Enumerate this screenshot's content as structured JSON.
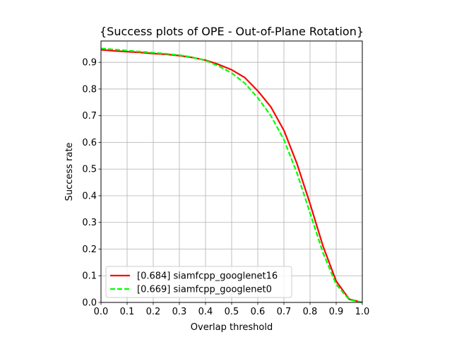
{
  "chart_data": {
    "type": "line",
    "title": "{Success plots of OPE - Out-of-Plane Rotation}",
    "xlabel": "Overlap threshold",
    "ylabel": "Success rate",
    "xlim": [
      0.0,
      1.0
    ],
    "ylim": [
      0.0,
      0.98
    ],
    "xticks": [
      "0.0",
      "0.1",
      "0.2",
      "0.3",
      "0.4",
      "0.5",
      "0.6",
      "0.7",
      "0.8",
      "0.9",
      "1.0"
    ],
    "yticks": [
      "0.0",
      "0.1",
      "0.2",
      "0.3",
      "0.4",
      "0.5",
      "0.6",
      "0.7",
      "0.8",
      "0.9"
    ],
    "grid": true,
    "legend_position": "lower-left",
    "x": [
      0.0,
      0.05,
      0.1,
      0.15,
      0.2,
      0.25,
      0.3,
      0.35,
      0.4,
      0.45,
      0.5,
      0.55,
      0.6,
      0.65,
      0.7,
      0.75,
      0.8,
      0.85,
      0.9,
      0.95,
      1.0
    ],
    "series": [
      {
        "name": "[0.684] siamfcpp_googlenet16",
        "color": "#ff0000",
        "dash": "solid",
        "values": [
          0.947,
          0.943,
          0.94,
          0.937,
          0.933,
          0.93,
          0.925,
          0.918,
          0.908,
          0.892,
          0.872,
          0.843,
          0.793,
          0.733,
          0.645,
          0.52,
          0.37,
          0.21,
          0.08,
          0.012,
          0.0
        ]
      },
      {
        "name": "[0.669] siamfcpp_googlenet0",
        "color": "#00ff00",
        "dash": "dashed",
        "values": [
          0.952,
          0.948,
          0.944,
          0.94,
          0.936,
          0.932,
          0.927,
          0.919,
          0.907,
          0.886,
          0.86,
          0.822,
          0.767,
          0.7,
          0.61,
          0.485,
          0.335,
          0.185,
          0.068,
          0.01,
          0.0
        ]
      }
    ]
  }
}
